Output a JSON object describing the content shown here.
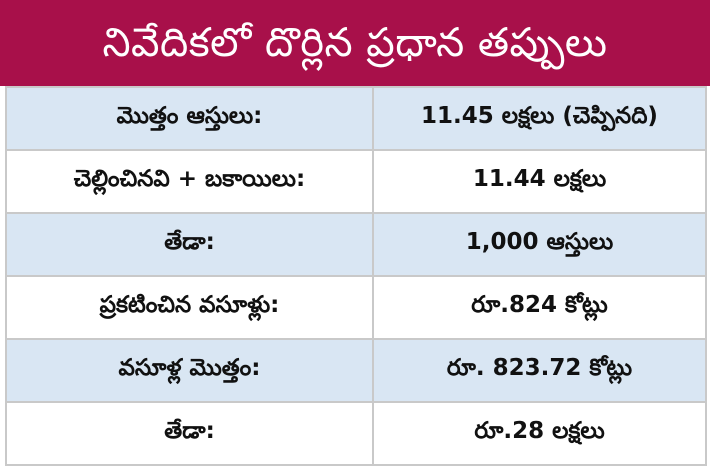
{
  "title": "నివేదికలో దొర్లిన ప్రధాన తప్పులు",
  "rows": [
    {
      "label": "మొత్తం ఆస్తులు:",
      "value": "11.45 లక్షలు (చెప్పినది)"
    },
    {
      "label": "చెల్లించినవి + బకాయిలు:",
      "value": "11.44 లక్షలు"
    },
    {
      "label": "తేడా:",
      "value": "1,000 ఆస్తులు"
    },
    {
      "label": "ప్రకటించిన వసూళ్లు:",
      "value": "రూ.824 కోట్లు"
    },
    {
      "label": "వసూళ్ల మొత్తం:",
      "value": "రూ. 823.72 కోట్లు"
    },
    {
      "label": "తేడా:",
      "value": "రూ.28 లక్షలు"
    }
  ],
  "colors": {
    "title_background": "#a8104a",
    "title_text": "#ffffff",
    "row_shaded": "#d9e6f3",
    "row_plain": "#ffffff",
    "border": "#c9c9c9"
  }
}
